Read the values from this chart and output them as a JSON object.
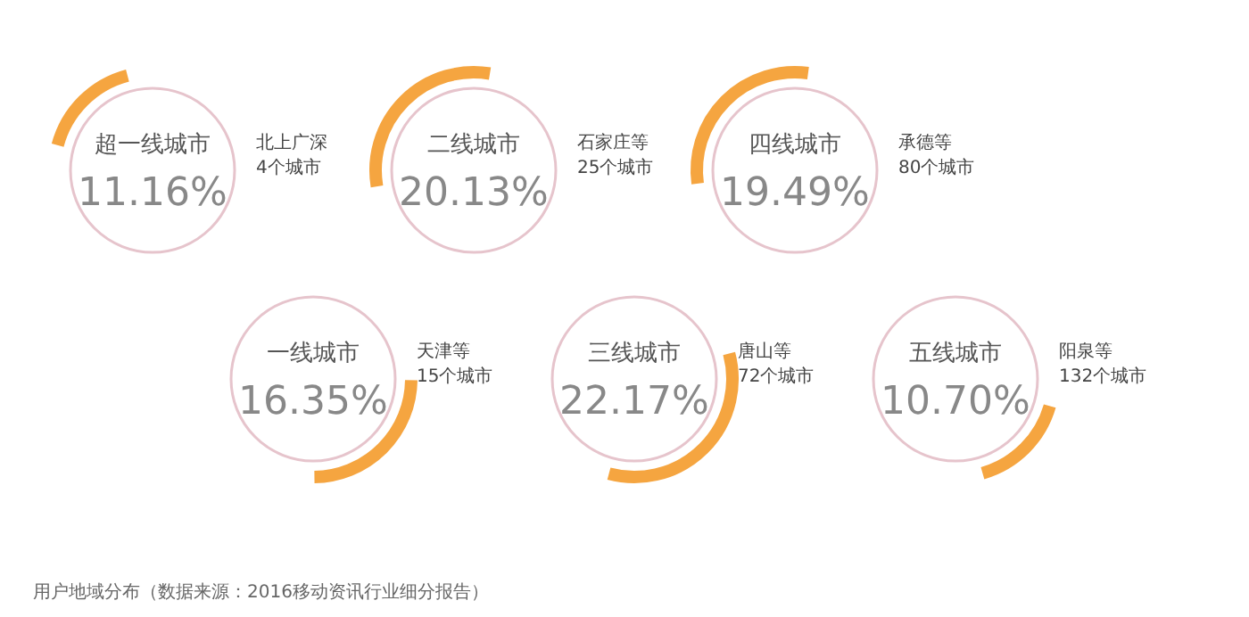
{
  "chart_data": {
    "type": "other",
    "categories": [
      "超一线城市",
      "一线城市",
      "二线城市",
      "三线城市",
      "四线城市",
      "五线城市"
    ],
    "values": [
      11.16,
      16.35,
      20.13,
      22.17,
      19.49,
      10.7
    ],
    "value_labels": [
      "11.16%",
      "16.35%",
      "20.13%",
      "22.17%",
      "19.49%",
      "10.70%"
    ],
    "color": "#f5a540",
    "annotations": [
      {
        "text": "北上广深\n4个城市",
        "x": "超一线城市"
      },
      {
        "text": "天津等\n15个城市",
        "x": "一线城市"
      },
      {
        "text": "石家庄等\n25个城市",
        "x": "二线城市"
      },
      {
        "text": "唐山等\n72个城市",
        "x": "三线城市"
      },
      {
        "text": "承德等\n80个城市",
        "x": "四线城市"
      },
      {
        "text": "阳泉等\n132个城市",
        "x": "五线城市"
      },
      "用户地域分布（数据来源：2016移动资讯行业细分报告）"
    ]
  }
}
